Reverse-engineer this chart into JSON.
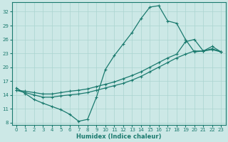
{
  "xlabel": "Humidex (Indice chaleur)",
  "xlim": [
    -0.5,
    23.5
  ],
  "ylim": [
    7.5,
    34
  ],
  "yticks": [
    8,
    11,
    14,
    17,
    20,
    23,
    26,
    29,
    32
  ],
  "xticks": [
    0,
    1,
    2,
    3,
    4,
    5,
    6,
    7,
    8,
    9,
    10,
    11,
    12,
    13,
    14,
    15,
    16,
    17,
    18,
    19,
    20,
    21,
    22,
    23
  ],
  "bg_color": "#cce8e6",
  "line_color": "#1a7a6e",
  "grid_color": "#aad4d0",
  "line1_x": [
    0,
    1,
    2,
    3,
    4,
    5,
    6,
    7,
    8,
    9,
    10,
    11,
    12,
    13,
    14,
    15,
    16,
    17,
    18,
    19,
    20,
    21,
    22,
    23
  ],
  "line1_y": [
    15.5,
    14.3,
    13.0,
    12.2,
    11.5,
    10.8,
    9.8,
    8.3,
    8.7,
    13.5,
    19.5,
    22.5,
    25.0,
    27.5,
    30.5,
    33.0,
    33.3,
    30.0,
    29.5,
    26.0,
    23.3,
    23.5,
    24.0,
    23.3
  ],
  "line2_x": [
    0,
    1,
    2,
    3,
    4,
    5,
    6,
    7,
    8,
    9,
    10,
    11,
    12,
    13,
    14,
    15,
    16,
    17,
    18,
    19,
    20,
    21,
    22,
    23
  ],
  "line2_y": [
    15.0,
    14.5,
    14.0,
    13.5,
    13.5,
    13.8,
    14.0,
    14.2,
    14.5,
    15.0,
    15.5,
    16.0,
    16.5,
    17.2,
    18.0,
    19.0,
    20.0,
    21.0,
    22.0,
    22.8,
    23.5,
    23.5,
    23.8,
    23.3
  ],
  "line3_x": [
    0,
    1,
    2,
    3,
    4,
    5,
    6,
    7,
    8,
    9,
    10,
    11,
    12,
    13,
    14,
    15,
    16,
    17,
    18,
    19,
    20,
    21,
    22,
    23
  ],
  "line3_y": [
    15.0,
    14.8,
    14.5,
    14.2,
    14.2,
    14.5,
    14.8,
    15.0,
    15.3,
    15.8,
    16.3,
    16.8,
    17.5,
    18.2,
    19.0,
    20.0,
    21.0,
    22.0,
    22.8,
    25.5,
    26.0,
    23.5,
    24.5,
    23.3
  ]
}
